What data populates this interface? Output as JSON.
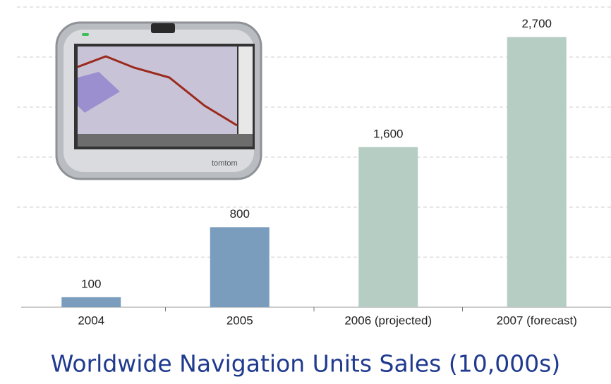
{
  "chart_data": {
    "type": "bar",
    "title": "Worldwide Navigation Units Sales (10,000s)",
    "categories": [
      "2004",
      "2005",
      "2006 (projected)",
      "2007 (forecast)"
    ],
    "values": [
      100,
      800,
      1600,
      2700
    ],
    "value_labels": [
      "100",
      "800",
      "1,600",
      "2,700"
    ],
    "colors": [
      "#7b9dbd",
      "#7b9dbd",
      "#b6cdc4",
      "#b6cdc4"
    ],
    "ylim": [
      0,
      3000
    ],
    "yticks": [
      0,
      500,
      1000,
      1500,
      2000,
      2500,
      3000
    ],
    "grid": true
  }
}
